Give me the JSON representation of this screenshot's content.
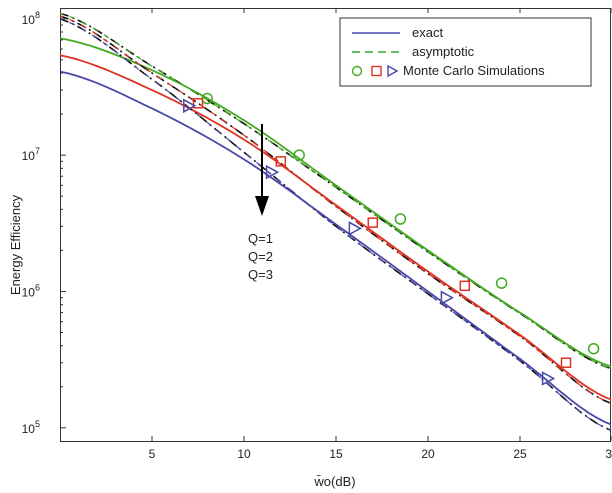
{
  "chart_data": {
    "type": "line",
    "title": "",
    "xlabel": "w̄o(dB)",
    "ylabel": "Energy Efficiency",
    "xlim": [
      0,
      30
    ],
    "ylim": [
      80000,
      120000000
    ],
    "yscale": "log",
    "grid": false,
    "x_ticks": [
      "5",
      "10",
      "15",
      "20",
      "25",
      "30"
    ],
    "y_ticks": [
      {
        "base": "10",
        "exp": "5"
      },
      {
        "base": "10",
        "exp": "6"
      },
      {
        "base": "10",
        "exp": "7"
      },
      {
        "base": "10",
        "exp": "8"
      }
    ],
    "legend": {
      "position": "top-right",
      "entries": [
        {
          "label": "exact",
          "style": "solid",
          "color": "#4b4bb0"
        },
        {
          "label": "asymptotic",
          "style": "dashed",
          "color": "#33aa33"
        },
        {
          "label": "Monte Carlo Simulations",
          "style": "markers",
          "markers": [
            "circle",
            "square",
            "triangle-right"
          ]
        }
      ]
    },
    "annotation": {
      "lines": [
        "Q=1",
        "Q=2",
        "Q=3"
      ],
      "arrow": "down"
    },
    "series": [
      {
        "color": "#44aa22",
        "marker": "circle",
        "exact": {
          "x": [
            0,
            5,
            10,
            15,
            20,
            25,
            30
          ],
          "y": [
            72000000,
            42000000,
            18000000,
            6000000,
            2000000,
            700000,
            280000
          ]
        },
        "asymptotic": {
          "x": [
            0,
            5,
            10,
            15,
            20,
            25,
            30
          ],
          "y": [
            110000000,
            45000000,
            17000000,
            5800000,
            1950000,
            690000,
            270000
          ]
        },
        "simulated": {
          "x": [
            8,
            13,
            18.5,
            24,
            29
          ],
          "y": [
            26000000,
            10000000,
            3400000,
            1150000,
            380000
          ]
        }
      },
      {
        "color": "#dd3322",
        "marker": "square",
        "exact": {
          "x": [
            0,
            5,
            10,
            15,
            20,
            25,
            30
          ],
          "y": [
            54000000,
            30000000,
            13000000,
            4300000,
            1400000,
            480000,
            160000
          ]
        },
        "asymptotic": {
          "x": [
            0,
            5,
            10,
            15,
            20,
            25,
            30
          ],
          "y": [
            105000000,
            40000000,
            14000000,
            4200000,
            1350000,
            470000,
            150000
          ]
        },
        "simulated": {
          "x": [
            7.5,
            12,
            17,
            22,
            27.5
          ],
          "y": [
            24000000,
            9000000,
            3200000,
            1100000,
            300000
          ]
        }
      },
      {
        "color": "#4848a8",
        "marker": "triangle-right",
        "exact": {
          "x": [
            0,
            5,
            10,
            15,
            20,
            25,
            30
          ],
          "y": [
            41000000,
            22000000,
            9300000,
            3100000,
            1000000,
            320000,
            105000
          ]
        },
        "asymptotic": {
          "x": [
            0,
            5,
            10,
            15,
            20,
            25,
            30
          ],
          "y": [
            100000000,
            36000000,
            10500000,
            3000000,
            960000,
            310000,
            95000
          ]
        },
        "simulated": {
          "x": [
            7,
            11.5,
            16,
            21,
            26.5
          ],
          "y": [
            23000000,
            7500000,
            2900000,
            900000,
            230000
          ]
        }
      }
    ]
  }
}
